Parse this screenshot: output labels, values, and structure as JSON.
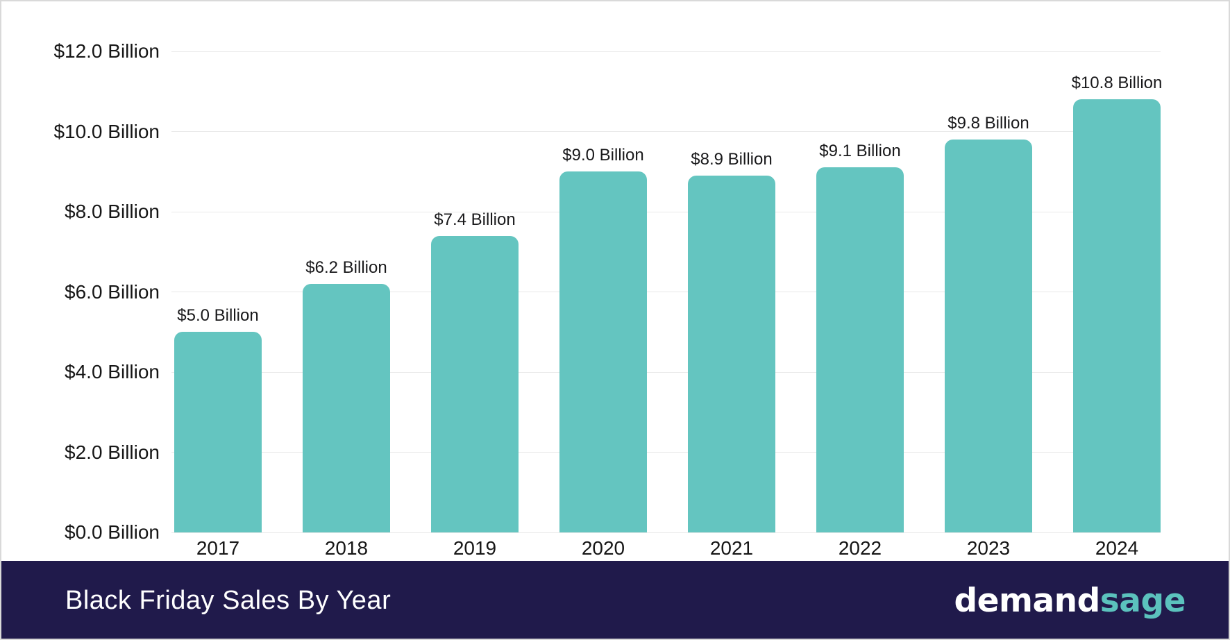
{
  "chart_data": {
    "type": "bar",
    "categories": [
      "2017",
      "2018",
      "2019",
      "2020",
      "2021",
      "2022",
      "2023",
      "2024"
    ],
    "values": [
      5.0,
      6.2,
      7.4,
      9.0,
      8.9,
      9.1,
      9.8,
      10.8
    ],
    "bar_labels": [
      "$5.0 Billion",
      "$6.2 Billion",
      "$7.4 Billion",
      "$9.0 Billion",
      "$8.9 Billion",
      "$9.1 Billion",
      "$9.8 Billion",
      "$10.8 Billion"
    ],
    "y_ticks": [
      {
        "value": 0,
        "label": "$0.0 Billion"
      },
      {
        "value": 2,
        "label": "$2.0 Billion"
      },
      {
        "value": 4,
        "label": "$4.0 Billion"
      },
      {
        "value": 6,
        "label": "$6.0 Billion"
      },
      {
        "value": 8,
        "label": "$8.0 Billion"
      },
      {
        "value": 10,
        "label": "$10.0 Billion"
      },
      {
        "value": 12,
        "label": "$12.0 Billion"
      }
    ],
    "ylim": [
      0,
      12
    ],
    "xlabel": "",
    "ylabel": "",
    "grid": true,
    "legend": false,
    "bar_color": "#64c5c0",
    "title": "Black Friday Sales By Year"
  },
  "footer": {
    "title": "Black Friday Sales By Year",
    "background_color": "#201a4b",
    "logo": {
      "part1": "demand",
      "part2": "sage",
      "part1_color": "#ffffff",
      "part2_color": "#5bc2bd"
    }
  }
}
